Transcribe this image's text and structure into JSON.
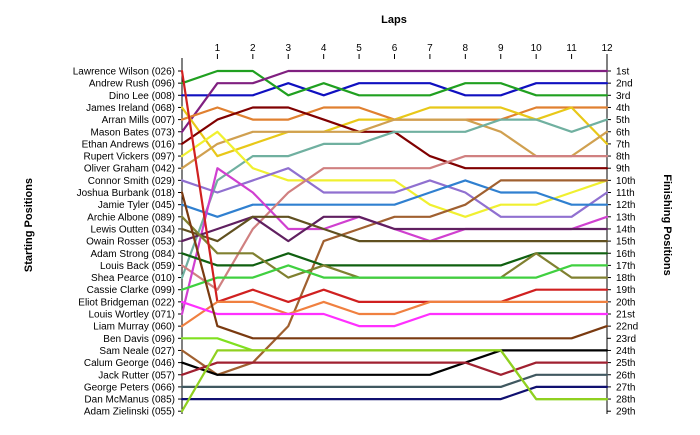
{
  "chart_data": {
    "type": "line",
    "title": "Laps",
    "ylabel_left": "Starting Positions",
    "ylabel_right": "Finishing Positions",
    "laps": [
      1,
      2,
      3,
      4,
      5,
      6,
      7,
      8,
      9,
      10,
      11,
      12
    ],
    "positions": [
      "1st",
      "2nd",
      "3rd",
      "4th",
      "5th",
      "6th",
      "7th",
      "8th",
      "9th",
      "10th",
      "11th",
      "12th",
      "13th",
      "14th",
      "15th",
      "16th",
      "17th",
      "18th",
      "19th",
      "20th",
      "21st",
      "22nd",
      "23rd",
      "24th",
      "25th",
      "26th",
      "27th",
      "28th",
      "29th"
    ],
    "starting_grid": [
      "Lawrence Wilson (026)",
      "Andrew Rush (096)",
      "Dino Lee (008)",
      "James Ireland (068)",
      "Arran Mills (007)",
      "Mason Bates (073)",
      "Ethan Andrews (016)",
      "Rupert Vickers (097)",
      "Oliver Graham (042)",
      "Connor Smith (029)",
      "Joshua Burbank (018)",
      "Jamie Tyler (045)",
      "Archie Albone (089)",
      "Lewis Outten (034)",
      "Owain Rosser (053)",
      "Adam Strong (084)",
      "Louis Back (059)",
      "Shea Pearce (010)",
      "Cassie Clarke (099)",
      "Eliot Bridgeman (022)",
      "Louis Wortley (071)",
      "Liam Murray (060)",
      "Ben Davis (096)",
      "Sam Neale (027)",
      "Calum George (046)",
      "Jack Rutter (057)",
      "George Peters (066)",
      "Dan McManus (085)",
      "Adam Zielinski (055)"
    ],
    "series": [
      {
        "color": "#1010c0",
        "start": 3,
        "laps": [
          3,
          3,
          2,
          3,
          2,
          2,
          2,
          3,
          3,
          2,
          2,
          2
        ]
      },
      {
        "color": "#20a020",
        "start": 2,
        "laps": [
          1,
          1,
          3,
          2,
          3,
          3,
          3,
          2,
          2,
          3,
          3,
          3
        ]
      },
      {
        "color": "#802080",
        "start": 6,
        "laps": [
          2,
          2,
          1,
          1,
          1,
          1,
          1,
          1,
          1,
          1,
          1,
          1
        ]
      },
      {
        "color": "#e08030",
        "start": 5,
        "laps": [
          4,
          5,
          5,
          4,
          4,
          5,
          5,
          5,
          5,
          4,
          4,
          4
        ]
      },
      {
        "color": "#e8c818",
        "start": 4,
        "laps": [
          8,
          7,
          6,
          6,
          5,
          5,
          4,
          4,
          4,
          5,
          4,
          7
        ]
      },
      {
        "color": "#800000",
        "start": 7,
        "laps": [
          5,
          4,
          4,
          5,
          6,
          6,
          8,
          9,
          9,
          9,
          9,
          9
        ]
      },
      {
        "color": "#d0a050",
        "start": 9,
        "laps": [
          7,
          6,
          6,
          6,
          6,
          5,
          5,
          5,
          6,
          8,
          8,
          6
        ]
      },
      {
        "color": "#70b0a0",
        "start": 18,
        "laps": [
          10,
          8,
          8,
          7,
          7,
          6,
          6,
          6,
          5,
          5,
          6,
          5
        ]
      },
      {
        "color": "#f0f030",
        "start": 8,
        "laps": [
          6,
          9,
          10,
          10,
          10,
          10,
          12,
          13,
          12,
          12,
          11,
          10
        ]
      },
      {
        "color": "#9070d0",
        "start": 10,
        "laps": [
          11,
          10,
          9,
          11,
          11,
          11,
          10,
          11,
          13,
          13,
          13,
          11
        ]
      },
      {
        "color": "#3080d0",
        "start": 12,
        "laps": [
          13,
          12,
          12,
          12,
          12,
          12,
          11,
          10,
          11,
          11,
          12,
          12
        ]
      },
      {
        "color": "#d08080",
        "start": 17,
        "laps": [
          19,
          14,
          11,
          9,
          9,
          9,
          9,
          8,
          8,
          8,
          8,
          8
        ]
      },
      {
        "color": "#d040d0",
        "start": 21,
        "laps": [
          9,
          11,
          14,
          14,
          13,
          14,
          15,
          14,
          14,
          14,
          14,
          13
        ]
      },
      {
        "color": "#a06030",
        "start": 24,
        "laps": [
          26,
          25,
          22,
          15,
          14,
          13,
          13,
          12,
          10,
          10,
          10,
          10
        ]
      },
      {
        "color": "#602060",
        "start": 15,
        "laps": [
          14,
          13,
          15,
          13,
          13,
          14,
          14,
          14,
          14,
          14,
          14,
          14
        ]
      },
      {
        "color": "#605020",
        "start": 14,
        "laps": [
          15,
          13,
          13,
          14,
          15,
          15,
          15,
          15,
          15,
          15,
          15,
          15
        ]
      },
      {
        "color": "#106010",
        "start": 16,
        "laps": [
          17,
          17,
          16,
          17,
          17,
          17,
          17,
          17,
          17,
          16,
          16,
          16
        ]
      },
      {
        "color": "#808030",
        "start": 13,
        "laps": [
          16,
          16,
          18,
          17,
          18,
          18,
          18,
          18,
          18,
          16,
          18,
          18
        ]
      },
      {
        "color": "#40d040",
        "start": 19,
        "laps": [
          18,
          18,
          17,
          18,
          18,
          18,
          18,
          18,
          18,
          18,
          17,
          17
        ]
      },
      {
        "color": "#d02020",
        "start": 1,
        "laps": [
          20,
          19,
          20,
          19,
          20,
          20,
          20,
          20,
          20,
          19,
          19,
          19
        ]
      },
      {
        "color": "#f08040",
        "start": 22,
        "laps": [
          20,
          20,
          21,
          20,
          21,
          21,
          20,
          20,
          20,
          20,
          20,
          20
        ]
      },
      {
        "color": "#ff30ff",
        "start": 20,
        "laps": [
          21,
          21,
          21,
          21,
          22,
          22,
          21,
          21,
          21,
          21,
          21,
          21
        ]
      },
      {
        "color": "#7a3a10",
        "start": 11,
        "laps": [
          22,
          23,
          23,
          23,
          23,
          23,
          23,
          23,
          23,
          23,
          23,
          22
        ]
      },
      {
        "color": "#80e020",
        "start": 23,
        "laps": [
          23,
          24,
          24,
          24,
          24,
          24,
          24,
          24,
          24,
          28,
          28,
          28
        ]
      },
      {
        "color": "#000000",
        "start": 25,
        "laps": [
          26,
          26,
          26,
          26,
          26,
          26,
          26,
          25,
          24,
          24,
          24,
          24
        ]
      },
      {
        "color": "#a02030",
        "start": 26,
        "laps": [
          25,
          25,
          25,
          25,
          25,
          25,
          25,
          25,
          26,
          25,
          25,
          25
        ]
      },
      {
        "color": "#405860",
        "start": 27,
        "laps": [
          27,
          27,
          27,
          27,
          27,
          27,
          27,
          27,
          27,
          26,
          26,
          26
        ]
      },
      {
        "color": "#101070",
        "start": 28,
        "laps": [
          28,
          28,
          28,
          28,
          28,
          28,
          28,
          28,
          28,
          27,
          27,
          27
        ]
      },
      {
        "color": "#90d020",
        "start": 29,
        "laps": [
          24,
          24,
          24,
          24,
          24,
          24,
          24,
          24,
          24,
          28,
          28,
          28
        ]
      }
    ]
  }
}
